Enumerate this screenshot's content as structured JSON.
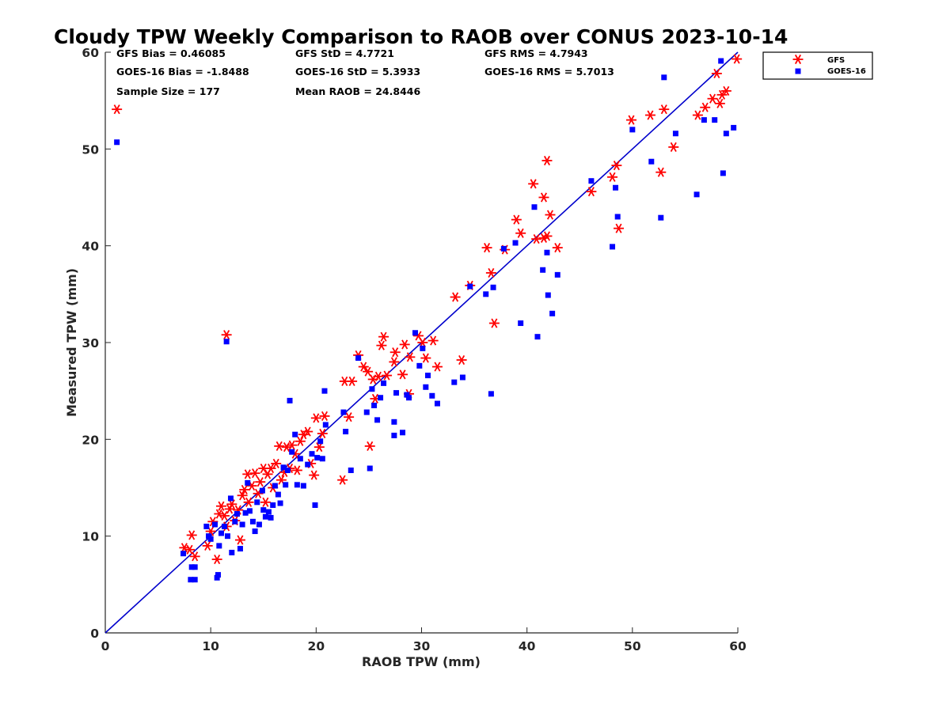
{
  "chart_data": {
    "type": "scatter",
    "title": "Cloudy TPW Weekly Comparison to RAOB over CONUS 2023-10-14",
    "xlabel": "RAOB TPW (mm)",
    "ylabel": "Measured TPW (mm)",
    "xlim": [
      0,
      60
    ],
    "ylim": [
      0,
      60
    ],
    "xticks": [
      "0",
      "10",
      "20",
      "30",
      "40",
      "50",
      "60"
    ],
    "yticks": [
      "0",
      "10",
      "20",
      "30",
      "40",
      "50",
      "60"
    ],
    "grid": false,
    "legend_position": "outside-top-right",
    "one_to_one_line": {
      "from": [
        0,
        0
      ],
      "to": [
        60,
        60
      ],
      "color": "#0000cc"
    },
    "stats": {
      "gfs_bias": "GFS Bias = 0.46085",
      "gfs_std": "GFS StD = 4.7721",
      "gfs_rms": "GFS RMS = 4.7943",
      "goes_bias": "GOES-16 Bias = -1.8488",
      "goes_std": "GOES-16 StD = 5.3933",
      "goes_rms": "GOES-16 RMS = 5.7013",
      "sample_size": "Sample Size = 177",
      "mean_raob": "Mean RAOB = 24.8446"
    },
    "series": [
      {
        "name": "GFS",
        "marker": "asterisk",
        "color": "#ff0000",
        "points": [
          [
            1.1,
            54.1
          ],
          [
            11.5,
            30.8
          ],
          [
            7.5,
            8.8
          ],
          [
            8.2,
            10.1
          ],
          [
            8.5,
            7.9
          ],
          [
            8.0,
            8.6
          ],
          [
            9.7,
            9.0
          ],
          [
            10.0,
            10.5
          ],
          [
            10.2,
            11.5
          ],
          [
            10.6,
            7.6
          ],
          [
            10.8,
            12.3
          ],
          [
            11.0,
            13.1
          ],
          [
            11.3,
            12.1
          ],
          [
            11.5,
            11.0
          ],
          [
            11.8,
            12.8
          ],
          [
            12.0,
            13.3
          ],
          [
            12.3,
            11.6
          ],
          [
            12.6,
            12.7
          ],
          [
            12.8,
            9.6
          ],
          [
            13.0,
            14.2
          ],
          [
            13.2,
            14.8
          ],
          [
            13.5,
            16.4
          ],
          [
            13.6,
            13.5
          ],
          [
            13.9,
            15.2
          ],
          [
            14.2,
            16.5
          ],
          [
            14.5,
            14.4
          ],
          [
            14.7,
            15.6
          ],
          [
            15.0,
            17.0
          ],
          [
            15.2,
            13.5
          ],
          [
            15.4,
            16.4
          ],
          [
            15.7,
            17.0
          ],
          [
            15.9,
            15.0
          ],
          [
            16.2,
            17.5
          ],
          [
            16.5,
            19.3
          ],
          [
            16.7,
            15.8
          ],
          [
            17.0,
            16.6
          ],
          [
            17.2,
            19.2
          ],
          [
            17.5,
            17.0
          ],
          [
            17.7,
            19.4
          ],
          [
            18.0,
            18.5
          ],
          [
            18.2,
            16.8
          ],
          [
            18.5,
            19.8
          ],
          [
            18.8,
            20.5
          ],
          [
            19.2,
            20.8
          ],
          [
            19.5,
            17.5
          ],
          [
            19.8,
            16.3
          ],
          [
            20.0,
            22.2
          ],
          [
            20.3,
            19.2
          ],
          [
            20.6,
            20.6
          ],
          [
            20.8,
            22.4
          ],
          [
            22.5,
            15.8
          ],
          [
            22.7,
            26.0
          ],
          [
            23.1,
            22.3
          ],
          [
            23.4,
            26.0
          ],
          [
            24.0,
            28.7
          ],
          [
            24.5,
            27.5
          ],
          [
            24.9,
            27.0
          ],
          [
            25.1,
            19.3
          ],
          [
            25.4,
            26.2
          ],
          [
            25.6,
            24.2
          ],
          [
            25.9,
            26.5
          ],
          [
            26.2,
            29.7
          ],
          [
            26.4,
            30.6
          ],
          [
            26.7,
            26.6
          ],
          [
            27.4,
            28.0
          ],
          [
            27.5,
            29.0
          ],
          [
            28.2,
            26.7
          ],
          [
            28.4,
            29.8
          ],
          [
            28.8,
            24.7
          ],
          [
            28.9,
            28.5
          ],
          [
            29.7,
            30.7
          ],
          [
            30.1,
            30.0
          ],
          [
            30.4,
            28.4
          ],
          [
            31.1,
            30.2
          ],
          [
            31.5,
            27.5
          ],
          [
            33.2,
            34.7
          ],
          [
            33.8,
            28.2
          ],
          [
            34.6,
            35.9
          ],
          [
            36.2,
            39.8
          ],
          [
            36.6,
            37.2
          ],
          [
            36.9,
            32.0
          ],
          [
            37.9,
            39.6
          ],
          [
            39.0,
            42.7
          ],
          [
            39.4,
            41.3
          ],
          [
            40.6,
            46.4
          ],
          [
            40.9,
            40.7
          ],
          [
            41.6,
            40.8
          ],
          [
            41.9,
            48.8
          ],
          [
            42.2,
            43.2
          ],
          [
            42.9,
            39.8
          ],
          [
            41.6,
            45.0
          ],
          [
            41.9,
            41.0
          ],
          [
            46.1,
            45.6
          ],
          [
            48.1,
            47.1
          ],
          [
            48.5,
            48.3
          ],
          [
            48.7,
            41.8
          ],
          [
            49.9,
            53.0
          ],
          [
            51.7,
            53.5
          ],
          [
            52.7,
            47.6
          ],
          [
            53.0,
            54.1
          ],
          [
            53.9,
            50.2
          ],
          [
            56.2,
            53.5
          ],
          [
            56.9,
            54.3
          ],
          [
            57.6,
            55.2
          ],
          [
            58.0,
            57.8
          ],
          [
            58.3,
            54.7
          ],
          [
            58.5,
            55.6
          ],
          [
            58.9,
            56.0
          ],
          [
            59.9,
            59.3
          ]
        ]
      },
      {
        "name": "GOES-16",
        "marker": "square",
        "color": "#0000ff",
        "points": [
          [
            1.1,
            50.7
          ],
          [
            11.5,
            30.1
          ],
          [
            7.4,
            8.2
          ],
          [
            8.1,
            5.5
          ],
          [
            8.5,
            5.5
          ],
          [
            8.2,
            6.8
          ],
          [
            8.5,
            6.8
          ],
          [
            9.6,
            11.0
          ],
          [
            9.8,
            10.0
          ],
          [
            10.0,
            9.7
          ],
          [
            10.4,
            11.2
          ],
          [
            10.6,
            5.7
          ],
          [
            10.7,
            6.0
          ],
          [
            10.8,
            9.0
          ],
          [
            11.0,
            10.3
          ],
          [
            11.3,
            11.0
          ],
          [
            11.6,
            10.0
          ],
          [
            11.9,
            13.9
          ],
          [
            12.0,
            8.3
          ],
          [
            12.3,
            11.5
          ],
          [
            12.5,
            12.3
          ],
          [
            12.8,
            8.7
          ],
          [
            13.0,
            11.2
          ],
          [
            13.3,
            12.4
          ],
          [
            13.5,
            15.5
          ],
          [
            13.7,
            12.6
          ],
          [
            14.0,
            11.5
          ],
          [
            14.2,
            10.5
          ],
          [
            14.4,
            13.5
          ],
          [
            14.6,
            11.2
          ],
          [
            14.9,
            14.7
          ],
          [
            15.0,
            12.7
          ],
          [
            15.2,
            12.0
          ],
          [
            15.5,
            12.5
          ],
          [
            15.7,
            11.9
          ],
          [
            15.9,
            13.2
          ],
          [
            16.1,
            15.2
          ],
          [
            16.4,
            14.3
          ],
          [
            16.6,
            13.4
          ],
          [
            16.9,
            17.1
          ],
          [
            17.1,
            15.3
          ],
          [
            17.3,
            16.8
          ],
          [
            17.5,
            24.0
          ],
          [
            17.7,
            18.7
          ],
          [
            18.0,
            20.5
          ],
          [
            18.2,
            15.3
          ],
          [
            18.5,
            18.0
          ],
          [
            18.8,
            15.2
          ],
          [
            19.2,
            17.4
          ],
          [
            19.6,
            18.5
          ],
          [
            19.9,
            13.2
          ],
          [
            20.1,
            18.1
          ],
          [
            20.4,
            19.8
          ],
          [
            20.6,
            18.0
          ],
          [
            20.9,
            21.5
          ],
          [
            20.8,
            25.0
          ],
          [
            22.6,
            22.8
          ],
          [
            22.8,
            20.8
          ],
          [
            23.3,
            16.8
          ],
          [
            24.0,
            28.4
          ],
          [
            24.8,
            22.8
          ],
          [
            25.1,
            17.0
          ],
          [
            25.3,
            25.2
          ],
          [
            25.5,
            23.5
          ],
          [
            25.8,
            22.0
          ],
          [
            26.1,
            24.3
          ],
          [
            26.4,
            25.8
          ],
          [
            27.4,
            20.4
          ],
          [
            27.4,
            21.8
          ],
          [
            27.6,
            24.8
          ],
          [
            28.2,
            20.7
          ],
          [
            28.6,
            24.6
          ],
          [
            28.8,
            24.3
          ],
          [
            29.4,
            31.0
          ],
          [
            29.8,
            27.6
          ],
          [
            30.1,
            29.4
          ],
          [
            30.4,
            25.4
          ],
          [
            30.6,
            26.6
          ],
          [
            31.0,
            24.5
          ],
          [
            31.5,
            23.7
          ],
          [
            33.1,
            25.9
          ],
          [
            33.9,
            26.4
          ],
          [
            34.6,
            35.8
          ],
          [
            36.1,
            35.0
          ],
          [
            36.6,
            24.7
          ],
          [
            36.8,
            35.7
          ],
          [
            37.8,
            39.7
          ],
          [
            38.9,
            40.3
          ],
          [
            39.4,
            32.0
          ],
          [
            40.7,
            44.0
          ],
          [
            41.0,
            30.6
          ],
          [
            41.5,
            37.5
          ],
          [
            41.9,
            39.3
          ],
          [
            42.0,
            34.9
          ],
          [
            42.4,
            33.0
          ],
          [
            42.9,
            37.0
          ],
          [
            46.1,
            46.7
          ],
          [
            48.1,
            39.9
          ],
          [
            48.4,
            46.0
          ],
          [
            48.6,
            43.0
          ],
          [
            50.0,
            52.0
          ],
          [
            51.8,
            48.7
          ],
          [
            52.7,
            42.9
          ],
          [
            53.0,
            57.4
          ],
          [
            54.1,
            51.6
          ],
          [
            56.1,
            45.3
          ],
          [
            56.8,
            53.0
          ],
          [
            57.8,
            53.0
          ],
          [
            58.4,
            59.1
          ],
          [
            58.6,
            47.5
          ],
          [
            58.9,
            51.6
          ],
          [
            59.6,
            52.2
          ]
        ]
      }
    ]
  }
}
